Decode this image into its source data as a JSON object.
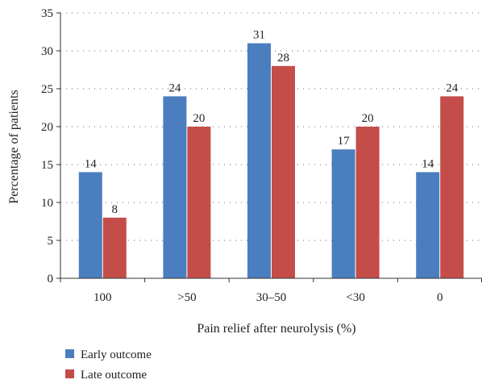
{
  "chart_data": {
    "type": "bar",
    "categories": [
      "100",
      ">50",
      "30–50",
      "<30",
      "0"
    ],
    "series": [
      {
        "name": "Early outcome",
        "values": [
          14,
          24,
          31,
          17,
          14
        ],
        "color": "#4a7ebf"
      },
      {
        "name": "Late outcome",
        "values": [
          8,
          20,
          28,
          20,
          24
        ],
        "color": "#c44d4a"
      }
    ],
    "xlabel": "Pain relief after neurolysis (%)",
    "ylabel": "Percentage of patients",
    "ylim": [
      0,
      35
    ],
    "yticks": [
      "0",
      "5",
      "10",
      "15",
      "20",
      "25",
      "30",
      "35"
    ],
    "grid": "dotted horizontal",
    "legend_position": "bottom-left"
  }
}
